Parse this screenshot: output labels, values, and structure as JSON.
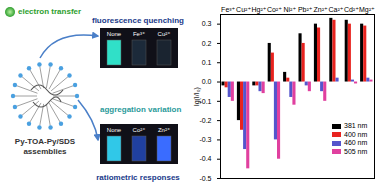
{
  "chart_data": {
    "type": "bar",
    "categories": [
      "Fe³⁺",
      "Cu²⁺",
      "Hg²⁺",
      "Co²⁺",
      "Ni²⁺",
      "Pb²⁺",
      "Zn²⁺",
      "Ca²⁺",
      "Cd²⁺",
      "Mg²⁺"
    ],
    "series": [
      {
        "name": "381 nm",
        "color": "#000000",
        "values": [
          -0.02,
          -0.2,
          -0.02,
          0.2,
          0.05,
          0.25,
          0.3,
          0.33,
          0.32,
          0.3
        ]
      },
      {
        "name": "400 nm",
        "color": "#e8231f",
        "values": [
          -0.03,
          -0.25,
          -0.02,
          0.15,
          0.02,
          0.2,
          0.28,
          0.32,
          0.3,
          0.29
        ]
      },
      {
        "name": "460 nm",
        "color": "#5555cc",
        "values": [
          -0.08,
          -0.35,
          -0.05,
          -0.3,
          -0.08,
          -0.02,
          -0.05,
          0.02,
          0.01,
          0.02
        ]
      },
      {
        "name": "505 nm",
        "color": "#e0409f",
        "values": [
          -0.1,
          -0.45,
          -0.06,
          -0.4,
          -0.12,
          -0.05,
          -0.1,
          0.0,
          -0.01,
          0.01
        ]
      }
    ],
    "y_label": "lg(I/I₀)",
    "ylim": [
      -0.5,
      0.35
    ],
    "yticks": [
      -0.5,
      -0.4,
      -0.3,
      -0.2,
      -0.1,
      {
        "value": 0,
        "label": "0.0"
      },
      0.1,
      0.2,
      0.3
    ],
    "legend": "bottom-right"
  },
  "diagram": {
    "electron_transfer": "electron transfer",
    "fluorescence_quenching": "fluorescence quenching",
    "aggregation_variation": "aggregation variation",
    "ratiometric_responses": "ratiometric responses",
    "assembly_label": [
      "Py-TOA-Py/SDS",
      "assemblies"
    ],
    "photo_top": [
      "None",
      "Fe³⁺",
      "Cu²⁺"
    ],
    "photo_bottom": [
      "None",
      "Co²⁺",
      "Zn²⁺"
    ]
  }
}
